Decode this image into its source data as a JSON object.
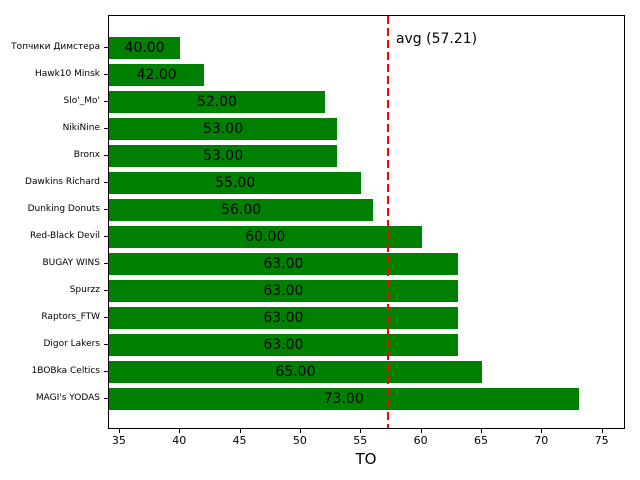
{
  "chart_data": {
    "type": "bar",
    "orientation": "horizontal",
    "title": "",
    "xlabel": "TO",
    "ylabel": "",
    "categories": [
      "Топчики Димстера",
      "Hawk10 Minsk",
      "Slo'_Mo'",
      "NikiNine",
      "Bronx",
      "Dawkins Richard",
      "Dunking Donuts",
      "Red-Black Devil",
      "BUGAY WINS",
      "Spurzz",
      "Raptors_FTW",
      "Digor Lakers",
      "1BOBka Celtics",
      "MAGI's YODAS"
    ],
    "values": [
      40,
      42,
      52,
      53,
      53,
      55,
      56,
      60,
      63,
      63,
      63,
      63,
      65,
      73
    ],
    "value_labels": [
      "40.00",
      "42.00",
      "52.00",
      "53.00",
      "53.00",
      "55.00",
      "56.00",
      "60.00",
      "63.00",
      "63.00",
      "63.00",
      "63.00",
      "65.00",
      "73.00"
    ],
    "x_ticks": [
      35,
      40,
      45,
      50,
      55,
      60,
      65,
      70,
      75
    ],
    "xlim": [
      34.1,
      76.85
    ],
    "grid": false,
    "legend": null,
    "bar_color": "#008000",
    "avg_line": {
      "value": 57.21,
      "label": "avg (57.21)",
      "color": "#ff0000",
      "style": "dashed"
    }
  }
}
